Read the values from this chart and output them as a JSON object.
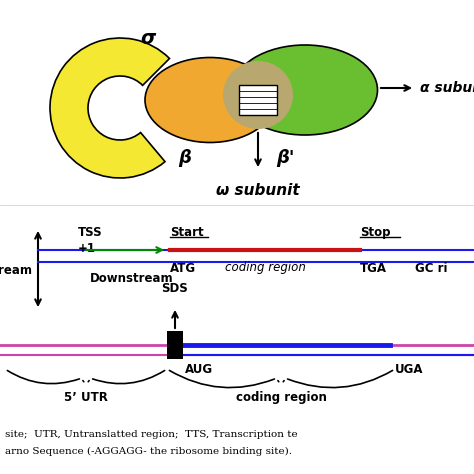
{
  "bg_color": "#ffffff",
  "sigma_label": "σ",
  "beta_label": "β",
  "beta_prime_label": "β'",
  "alpha_label": "α subunits",
  "omega_label": "ω subunit",
  "sigma_color": "#f5e832",
  "beta_color": "#f0a830",
  "beta_prime_color": "#6abf30",
  "omega_color": "#b8a870",
  "caption_text1": "site;  UTR, Untranslatted region;  TTS, Transcription te",
  "caption_text2": "arno Sequence (-AGGAGG- the ribosome binding site).",
  "top_line_color": "#1a1aee",
  "coding_line_color": "#cc1111",
  "green_arrow_color": "#008800",
  "bottom_blue_color": "#1a1aee",
  "bottom_pink_color": "#cc44aa",
  "tss_label": "TSS",
  "start_label": "Start",
  "stop_label": "Stop",
  "plus1_label": "+1",
  "atg_label": "ATG",
  "tga_label": "TGA",
  "gc_label": "GC ri",
  "coding_region_label": "coding region",
  "upstream_label": "ream",
  "downstream_label": "Downstream",
  "sds_label": "SDS",
  "aug_label": "AUG",
  "uga_label": "UGA",
  "utr_label": "5’ UTR",
  "coding_region2_label": "coding region"
}
